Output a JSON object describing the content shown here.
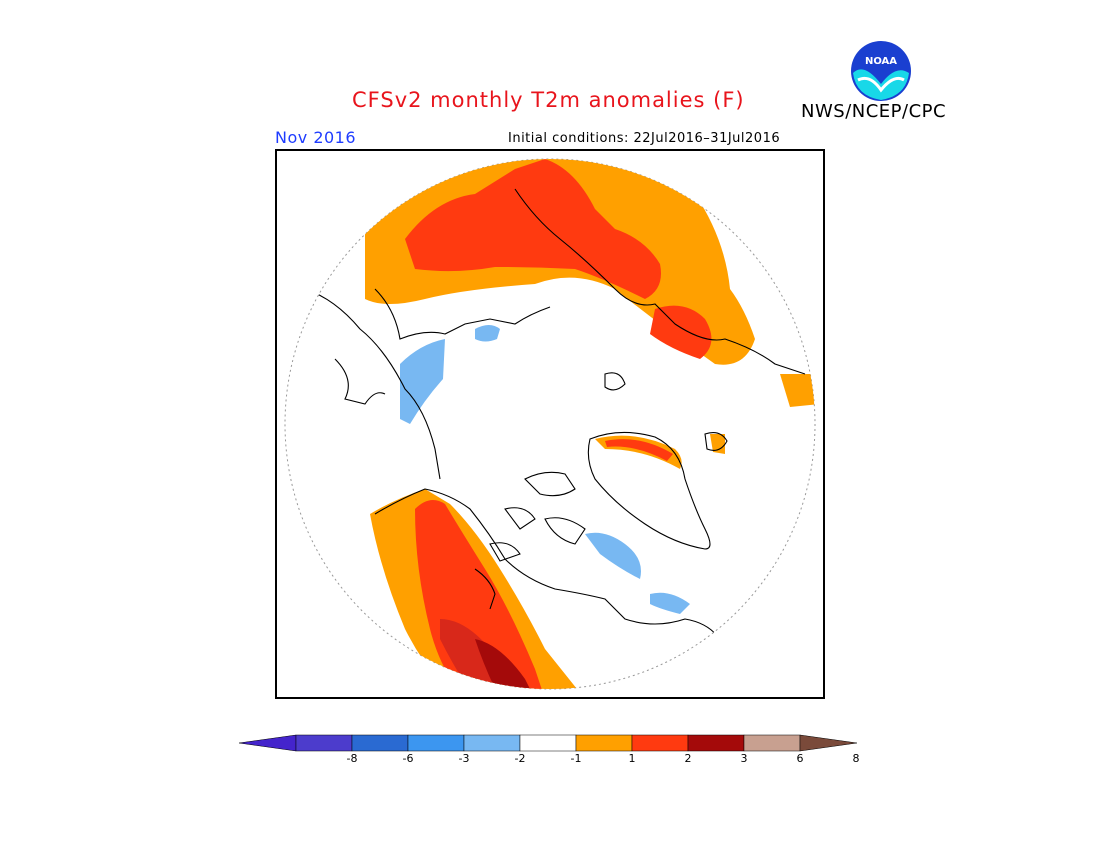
{
  "title": "CFSv2 monthly T2m anomalies (F)",
  "agency": "NWS/NCEP/CPC",
  "logo_text": "NOAA",
  "period": "Nov 2016",
  "initial_conditions": "Initial conditions: 22Jul2016–31Jul2016",
  "legend": {
    "colors": [
      "#4424cc",
      "#4c3ccc",
      "#2a6ad2",
      "#3c96f0",
      "#78b8f2",
      "#ffffff",
      "#ffa000",
      "#ff3a10",
      "#a40a0a",
      "#c8a090",
      "#7a4a3a"
    ],
    "labels": [
      "-8",
      "-6",
      "-3",
      "-2",
      "-1",
      "1",
      "2",
      "3",
      "6",
      "8"
    ]
  }
}
